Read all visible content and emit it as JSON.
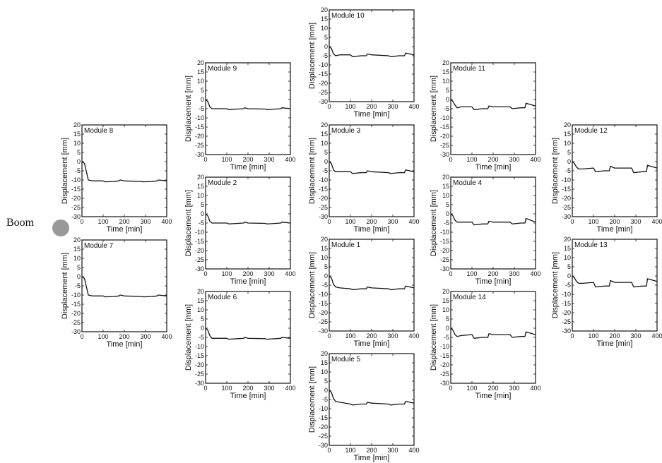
{
  "boom": {
    "label": "Boom"
  },
  "axis": {
    "xlabel": "Time [min]",
    "ylabel": "Displacement [mm]",
    "xlim": [
      0,
      400
    ],
    "ylim": [
      -30,
      20
    ],
    "xticks": [
      0,
      100,
      200,
      300,
      400
    ],
    "yticks": [
      20,
      15,
      10,
      5,
      0,
      -5,
      -10,
      -15,
      -20,
      -25,
      -30
    ]
  },
  "chart_data": [
    {
      "type": "line",
      "title": "Module 8",
      "x": [
        0,
        12,
        20,
        30,
        50,
        100,
        110,
        150,
        175,
        180,
        200,
        280,
        290,
        330,
        355,
        360,
        400
      ],
      "y": [
        0,
        -1,
        -5,
        -10,
        -10.5,
        -10.5,
        -11,
        -10.8,
        -10.5,
        -10,
        -10.5,
        -10.8,
        -11,
        -10.8,
        -10.5,
        -10,
        -10.5
      ]
    },
    {
      "type": "line",
      "title": "Module 7",
      "x": [
        0,
        12,
        20,
        30,
        50,
        100,
        110,
        150,
        175,
        180,
        200,
        280,
        290,
        330,
        355,
        360,
        400
      ],
      "y": [
        0,
        -1,
        -5,
        -10,
        -10.5,
        -10.5,
        -11,
        -10.8,
        -10.5,
        -10,
        -10.5,
        -10.8,
        -11,
        -10.8,
        -10.5,
        -10,
        -10.5
      ]
    },
    {
      "type": "line",
      "title": "Module 9",
      "x": [
        0,
        10,
        20,
        30,
        50,
        100,
        110,
        150,
        180,
        185,
        200,
        280,
        290,
        330,
        355,
        360,
        400
      ],
      "y": [
        0,
        -1,
        -4,
        -5,
        -5,
        -5,
        -5.5,
        -5.2,
        -5,
        -4.5,
        -5,
        -5.2,
        -5.5,
        -5.2,
        -5,
        -4.5,
        -5
      ]
    },
    {
      "type": "line",
      "title": "Module 2",
      "x": [
        0,
        10,
        20,
        30,
        50,
        100,
        110,
        150,
        180,
        185,
        200,
        280,
        290,
        330,
        355,
        360,
        400
      ],
      "y": [
        0,
        -1,
        -4,
        -5,
        -5,
        -5,
        -5.5,
        -5.2,
        -5,
        -4.5,
        -5,
        -5.2,
        -5.5,
        -5.2,
        -5,
        -4.5,
        -5
      ]
    },
    {
      "type": "line",
      "title": "Module 6",
      "x": [
        0,
        10,
        20,
        30,
        50,
        100,
        110,
        150,
        180,
        185,
        200,
        280,
        290,
        330,
        355,
        360,
        400
      ],
      "y": [
        0,
        -1,
        -4,
        -5.5,
        -5.5,
        -5.5,
        -6,
        -5.7,
        -5.5,
        -5,
        -5.5,
        -5.7,
        -6,
        -5.7,
        -5.5,
        -5,
        -5.5
      ]
    },
    {
      "type": "line",
      "title": "Module 10",
      "x": [
        0,
        10,
        20,
        30,
        50,
        100,
        110,
        150,
        175,
        180,
        200,
        280,
        290,
        330,
        355,
        360,
        400
      ],
      "y": [
        0,
        -1,
        -4,
        -5,
        -4.5,
        -4.5,
        -5.5,
        -5,
        -5,
        -4,
        -4.5,
        -5,
        -5.5,
        -5,
        -5,
        -3.5,
        -4.5
      ]
    },
    {
      "type": "line",
      "title": "Module 3",
      "x": [
        0,
        10,
        20,
        30,
        50,
        100,
        110,
        150,
        175,
        180,
        200,
        280,
        290,
        330,
        355,
        360,
        400
      ],
      "y": [
        0,
        -1,
        -4.5,
        -5.5,
        -5.5,
        -5.5,
        -6.5,
        -6,
        -6,
        -5,
        -5.5,
        -6,
        -6.5,
        -6,
        -6,
        -4.5,
        -5.5
      ]
    },
    {
      "type": "line",
      "title": "Module 1",
      "x": [
        0,
        10,
        20,
        30,
        50,
        100,
        110,
        150,
        175,
        180,
        200,
        280,
        290,
        330,
        355,
        360,
        400
      ],
      "y": [
        0,
        -1,
        -4.5,
        -6,
        -6.5,
        -7,
        -7.5,
        -7,
        -7,
        -6,
        -6.5,
        -7,
        -7.5,
        -7,
        -7,
        -5.5,
        -6.5
      ]
    },
    {
      "type": "line",
      "title": "Module 5",
      "x": [
        0,
        10,
        20,
        30,
        50,
        100,
        110,
        150,
        175,
        180,
        200,
        280,
        290,
        330,
        355,
        360,
        400
      ],
      "y": [
        0,
        -1,
        -4.5,
        -6,
        -6.5,
        -7.5,
        -8,
        -7.5,
        -7.5,
        -6.5,
        -7,
        -7.5,
        -8,
        -7.5,
        -7.5,
        -6,
        -7
      ]
    },
    {
      "type": "line",
      "title": "Module 11",
      "x": [
        0,
        10,
        20,
        30,
        50,
        100,
        110,
        150,
        175,
        180,
        200,
        280,
        290,
        330,
        350,
        355,
        400
      ],
      "y": [
        0,
        -1,
        -3,
        -4.5,
        -4,
        -4,
        -5.5,
        -5,
        -5,
        -3.5,
        -4,
        -4,
        -5,
        -4.5,
        -4.5,
        -2,
        -3.5
      ]
    },
    {
      "type": "line",
      "title": "Module 4",
      "x": [
        0,
        10,
        20,
        30,
        50,
        100,
        110,
        150,
        175,
        180,
        200,
        280,
        290,
        330,
        350,
        355,
        400
      ],
      "y": [
        0,
        -1,
        -3.5,
        -4.5,
        -4.5,
        -4.5,
        -6,
        -5.5,
        -5.5,
        -4,
        -4.5,
        -4.5,
        -5.5,
        -5,
        -5,
        -2.5,
        -4.5
      ]
    },
    {
      "type": "line",
      "title": "Module 14",
      "x": [
        0,
        10,
        20,
        30,
        50,
        100,
        110,
        150,
        175,
        180,
        200,
        280,
        290,
        330,
        350,
        355,
        400
      ],
      "y": [
        0,
        -1,
        -3.5,
        -4.5,
        -4,
        -3.5,
        -5.5,
        -5,
        -5,
        -3,
        -3.5,
        -3.5,
        -5,
        -4.5,
        -4.5,
        -2,
        -3.5
      ]
    },
    {
      "type": "line",
      "title": "Module 12",
      "x": [
        0,
        10,
        20,
        30,
        50,
        100,
        110,
        150,
        175,
        180,
        200,
        280,
        290,
        330,
        350,
        355,
        400
      ],
      "y": [
        0,
        -1,
        -3,
        -4,
        -4,
        -3.5,
        -5.5,
        -5,
        -5,
        -2.5,
        -3.5,
        -3.5,
        -6,
        -5.5,
        -5.5,
        -2,
        -3.5
      ]
    },
    {
      "type": "line",
      "title": "Module 13",
      "x": [
        0,
        10,
        20,
        30,
        50,
        100,
        110,
        150,
        175,
        180,
        200,
        280,
        290,
        330,
        350,
        355,
        400
      ],
      "y": [
        0,
        -1,
        -3,
        -4,
        -4,
        -3.5,
        -6,
        -5.5,
        -5.5,
        -2.5,
        -3.5,
        -3.5,
        -6,
        -5.5,
        -5.5,
        -1.5,
        -3
      ]
    }
  ]
}
